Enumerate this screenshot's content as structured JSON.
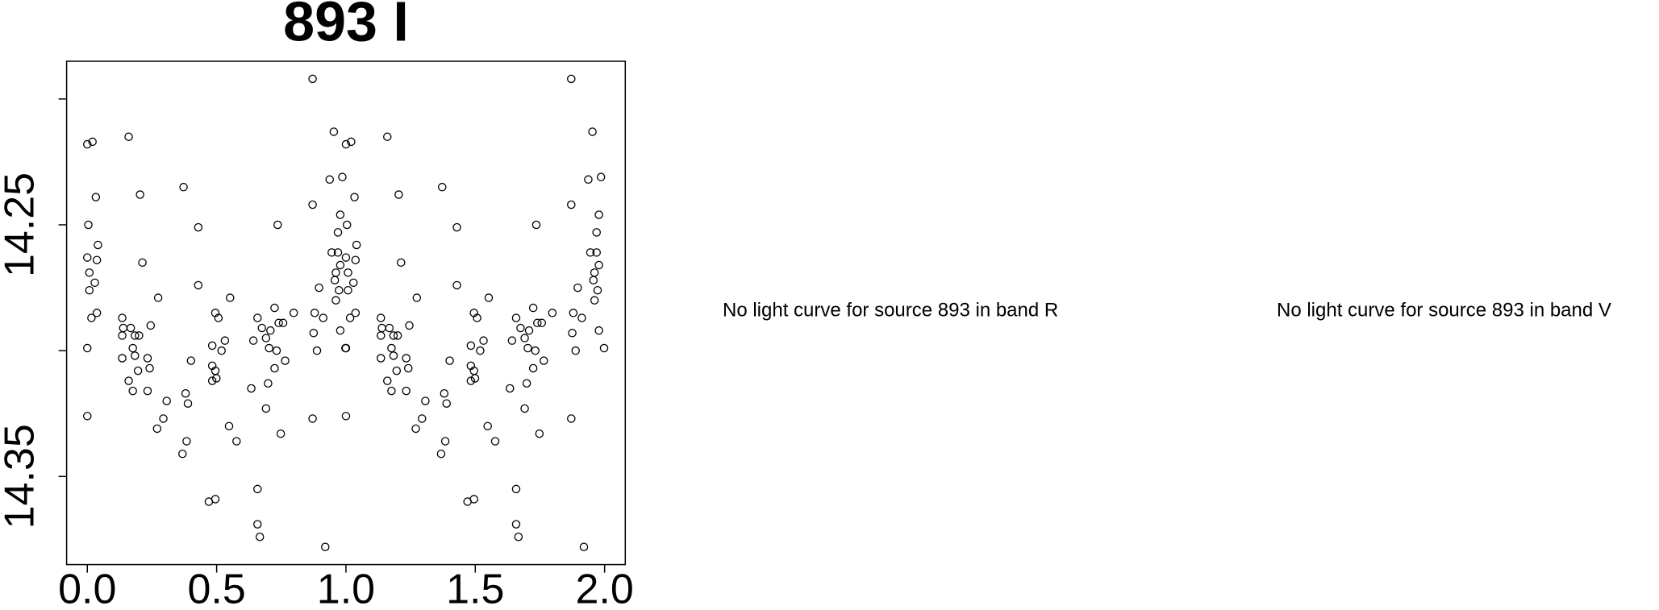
{
  "chart_data": {
    "type": "scatter",
    "title": "893 I",
    "xlim": [
      -0.08,
      2.08
    ],
    "ylim": [
      14.185,
      14.385
    ],
    "y_inverted": true,
    "xticks": [
      {
        "value": 0,
        "label": "0.0"
      },
      0.5,
      {
        "value": 1,
        "label": "1.0"
      },
      1.5,
      {
        "value": 2,
        "label": "2.0"
      }
    ],
    "yticks": [
      {
        "value": 14.2,
        "label": null
      },
      14.25,
      {
        "value": 14.3,
        "label": null
      },
      14.35
    ],
    "marker_color": "#000000",
    "x": [
      0.0,
      0.02,
      0.033,
      0.004,
      0.0,
      0.041,
      0.037,
      0.008,
      0.029,
      0.008,
      0.037,
      0.016,
      0.0,
      0.0,
      0.135,
      0.139,
      0.135,
      0.168,
      0.184,
      0.2,
      0.176,
      0.184,
      0.135,
      0.196,
      0.233,
      0.241,
      0.16,
      0.233,
      0.176,
      0.16,
      0.204,
      0.213,
      0.274,
      0.245,
      0.307,
      0.294,
      0.27,
      0.372,
      0.429,
      0.429,
      0.401,
      0.38,
      0.389,
      0.384,
      0.368,
      0.483,
      0.483,
      0.483,
      0.499,
      0.507,
      0.495,
      0.519,
      0.532,
      0.495,
      0.552,
      0.548,
      0.577,
      0.47,
      0.495,
      0.634,
      0.642,
      0.658,
      0.675,
      0.691,
      0.708,
      0.724,
      0.74,
      0.757,
      0.703,
      0.732,
      0.724,
      0.765,
      0.699,
      0.691,
      0.748,
      0.798,
      0.736,
      0.658,
      0.658,
      0.667,
      0.871,
      0.871,
      0.875,
      0.888,
      0.879,
      0.896,
      0.912,
      0.871,
      0.92,
      0.937,
      0.945,
      0.953,
      0.957,
      0.961,
      0.969,
      0.973,
      0.978,
      0.986,
      0.998,
      0.978,
      0.969,
      0.978,
      0.961,
      1.0,
      1.02,
      1.033,
      1.004,
      1.0,
      1.041,
      1.037,
      1.008,
      1.029,
      1.008,
      1.037,
      1.016,
      1.0,
      1.0,
      1.135,
      1.139,
      1.135,
      1.168,
      1.184,
      1.2,
      1.176,
      1.184,
      1.135,
      1.196,
      1.233,
      1.241,
      1.16,
      1.233,
      1.176,
      1.16,
      1.204,
      1.213,
      1.274,
      1.245,
      1.307,
      1.294,
      1.27,
      1.372,
      1.429,
      1.429,
      1.401,
      1.38,
      1.389,
      1.384,
      1.368,
      1.483,
      1.483,
      1.483,
      1.499,
      1.507,
      1.495,
      1.519,
      1.532,
      1.495,
      1.552,
      1.548,
      1.577,
      1.47,
      1.495,
      1.634,
      1.642,
      1.658,
      1.675,
      1.691,
      1.708,
      1.724,
      1.74,
      1.757,
      1.703,
      1.732,
      1.724,
      1.765,
      1.699,
      1.691,
      1.748,
      1.798,
      1.736,
      1.658,
      1.658,
      1.667,
      1.871,
      1.871,
      1.875,
      1.888,
      1.879,
      1.896,
      1.912,
      1.871,
      1.92,
      1.937,
      1.945,
      1.953,
      1.957,
      1.961,
      1.969,
      1.973,
      1.978,
      1.986,
      1.998,
      1.978,
      1.969,
      1.978,
      1.961
    ],
    "y": [
      14.218,
      14.217,
      14.239,
      14.25,
      14.263,
      14.258,
      14.264,
      14.269,
      14.273,
      14.276,
      14.285,
      14.287,
      14.299,
      14.326,
      14.287,
      14.291,
      14.294,
      14.291,
      14.294,
      14.294,
      14.299,
      14.302,
      14.303,
      14.308,
      14.303,
      14.307,
      14.312,
      14.316,
      14.316,
      14.215,
      14.238,
      14.265,
      14.279,
      14.29,
      14.32,
      14.327,
      14.331,
      14.235,
      14.251,
      14.274,
      14.304,
      14.317,
      14.321,
      14.336,
      14.341,
      14.312,
      14.306,
      14.298,
      14.311,
      14.287,
      14.285,
      14.3,
      14.296,
      14.308,
      14.279,
      14.33,
      14.336,
      14.36,
      14.359,
      14.315,
      14.296,
      14.287,
      14.291,
      14.295,
      14.292,
      14.283,
      14.289,
      14.289,
      14.299,
      14.3,
      14.307,
      14.304,
      14.313,
      14.323,
      14.333,
      14.285,
      14.25,
      14.355,
      14.369,
      14.374,
      14.192,
      14.242,
      14.293,
      14.3,
      14.285,
      14.275,
      14.287,
      14.327,
      14.378,
      14.232,
      14.261,
      14.213,
      14.272,
      14.28,
      14.253,
      14.276,
      14.292,
      14.231,
      14.299,
      14.246,
      14.261,
      14.266,
      14.269,
      14.218,
      14.217,
      14.239,
      14.25,
      14.263,
      14.258,
      14.264,
      14.269,
      14.273,
      14.276,
      14.285,
      14.287,
      14.299,
      14.326,
      14.287,
      14.291,
      14.294,
      14.291,
      14.294,
      14.294,
      14.299,
      14.302,
      14.303,
      14.308,
      14.303,
      14.307,
      14.312,
      14.316,
      14.316,
      14.215,
      14.238,
      14.265,
      14.279,
      14.29,
      14.32,
      14.327,
      14.331,
      14.235,
      14.251,
      14.274,
      14.304,
      14.317,
      14.321,
      14.336,
      14.341,
      14.312,
      14.306,
      14.298,
      14.311,
      14.287,
      14.285,
      14.3,
      14.296,
      14.308,
      14.279,
      14.33,
      14.336,
      14.36,
      14.359,
      14.315,
      14.296,
      14.287,
      14.291,
      14.295,
      14.292,
      14.283,
      14.289,
      14.289,
      14.299,
      14.3,
      14.307,
      14.304,
      14.313,
      14.323,
      14.333,
      14.285,
      14.25,
      14.355,
      14.369,
      14.374,
      14.192,
      14.242,
      14.293,
      14.3,
      14.285,
      14.275,
      14.287,
      14.327,
      14.378,
      14.232,
      14.261,
      14.213,
      14.272,
      14.28,
      14.253,
      14.276,
      14.292,
      14.231,
      14.299,
      14.246,
      14.261,
      14.266,
      14.269
    ],
    "annotations": [
      "No light curve for source 893 in band R",
      "No light curve for source 893 in band V"
    ]
  }
}
